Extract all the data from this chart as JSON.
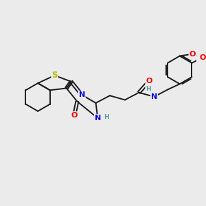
{
  "bg_color": "#ebebeb",
  "bond_color": "#1a1a1a",
  "atom_colors": {
    "S": "#b8b800",
    "N": "#0000ee",
    "O": "#ee0000",
    "C": "#1a1a1a",
    "H": "#5a9a9a"
  },
  "font_size": 7.0,
  "lw": 1.4
}
